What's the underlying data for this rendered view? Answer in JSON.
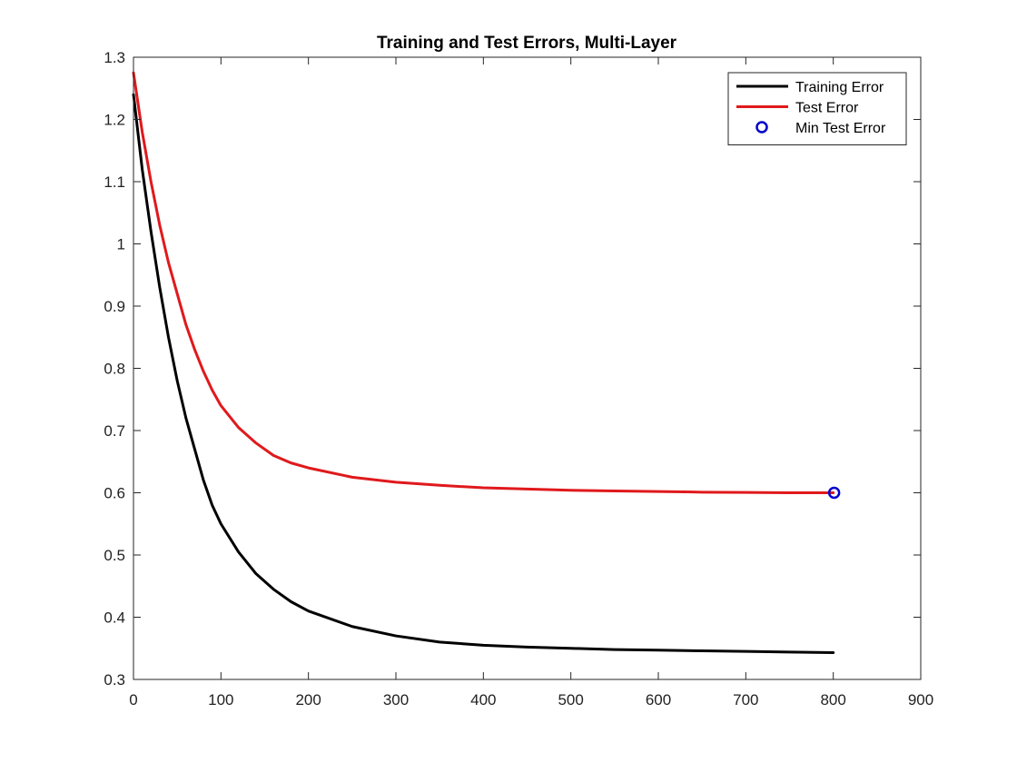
{
  "chart_data": {
    "type": "line",
    "title": "Training and Test Errors, Multi-Layer",
    "xlabel": "",
    "ylabel": "",
    "xlim": [
      0,
      900
    ],
    "ylim": [
      0.3,
      1.3
    ],
    "xticks": [
      0,
      100,
      200,
      300,
      400,
      500,
      600,
      700,
      800,
      900
    ],
    "xtick_labels": [
      "0",
      "100",
      "200",
      "300",
      "400",
      "500",
      "600",
      "700",
      "800",
      "900"
    ],
    "yticks": [
      0.3,
      0.4,
      0.5,
      0.6,
      0.7,
      0.8,
      0.9,
      1.0,
      1.1,
      1.2,
      1.3
    ],
    "ytick_labels": [
      "0.3",
      "0.4",
      "0.5",
      "0.6",
      "0.7",
      "0.8",
      "0.9",
      "1",
      "1.1",
      "1.2",
      "1.3"
    ],
    "grid": false,
    "legend_position": "top-right",
    "series": [
      {
        "name": "Training Error",
        "color": "#000000",
        "style": "line",
        "x": [
          0,
          10,
          20,
          30,
          40,
          50,
          60,
          70,
          80,
          90,
          100,
          120,
          140,
          160,
          180,
          200,
          250,
          300,
          350,
          400,
          450,
          500,
          550,
          600,
          650,
          700,
          750,
          800
        ],
        "y": [
          1.24,
          1.12,
          1.02,
          0.93,
          0.85,
          0.78,
          0.72,
          0.67,
          0.62,
          0.58,
          0.55,
          0.505,
          0.47,
          0.445,
          0.425,
          0.41,
          0.385,
          0.37,
          0.36,
          0.355,
          0.352,
          0.35,
          0.348,
          0.347,
          0.346,
          0.345,
          0.344,
          0.343
        ]
      },
      {
        "name": "Test Error",
        "color": "#e0191c",
        "style": "line",
        "x": [
          0,
          10,
          20,
          30,
          40,
          50,
          60,
          70,
          80,
          90,
          100,
          120,
          140,
          160,
          180,
          200,
          250,
          300,
          350,
          400,
          450,
          500,
          550,
          600,
          650,
          700,
          750,
          800
        ],
        "y": [
          1.275,
          1.18,
          1.1,
          1.03,
          0.97,
          0.92,
          0.87,
          0.83,
          0.795,
          0.765,
          0.74,
          0.705,
          0.68,
          0.66,
          0.648,
          0.64,
          0.625,
          0.617,
          0.612,
          0.608,
          0.606,
          0.604,
          0.603,
          0.602,
          0.601,
          0.6005,
          0.6,
          0.6
        ]
      },
      {
        "name": "Min Test Error",
        "color": "#0000cc",
        "style": "marker-circle",
        "x": [
          801
        ],
        "y": [
          0.6
        ]
      }
    ]
  }
}
